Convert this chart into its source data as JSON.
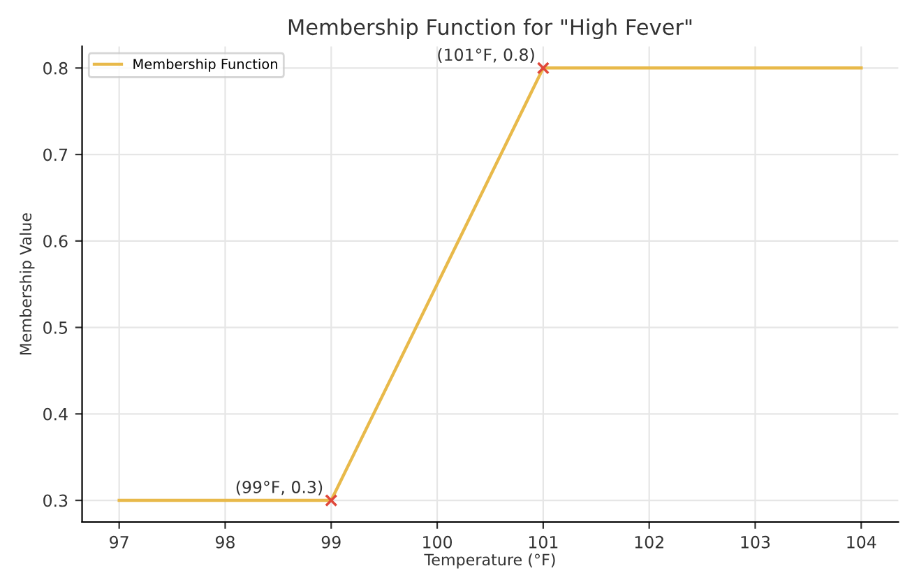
{
  "chart_data": {
    "type": "line",
    "title": "Membership Function for \"High Fever\"",
    "xlabel": "Temperature (°F)",
    "ylabel": "Membership Value",
    "series": [
      {
        "name": "Membership Function",
        "color": "#e8b94a",
        "x": [
          97,
          99,
          101,
          104
        ],
        "values": [
          0.3,
          0.3,
          0.8,
          0.8
        ]
      },
      {
        "type": "scatter",
        "color": "#e0483a",
        "marker": "cross",
        "x": [
          99,
          101
        ],
        "values": [
          0.3,
          0.8
        ]
      }
    ],
    "annotations": [
      {
        "text": "(99°F, 0.3)",
        "x": 99,
        "y": 0.3
      },
      {
        "text": "(101°F, 0.8)",
        "x": 101,
        "y": 0.8
      }
    ],
    "xlim": [
      96.65,
      104.35
    ],
    "ylim": [
      0.275,
      0.825
    ],
    "xticks": [
      97,
      98,
      99,
      100,
      101,
      102,
      103,
      104
    ],
    "yticks": [
      0.3,
      0.4,
      0.5,
      0.6,
      0.7,
      0.8
    ],
    "grid": true,
    "legend": "top left"
  }
}
